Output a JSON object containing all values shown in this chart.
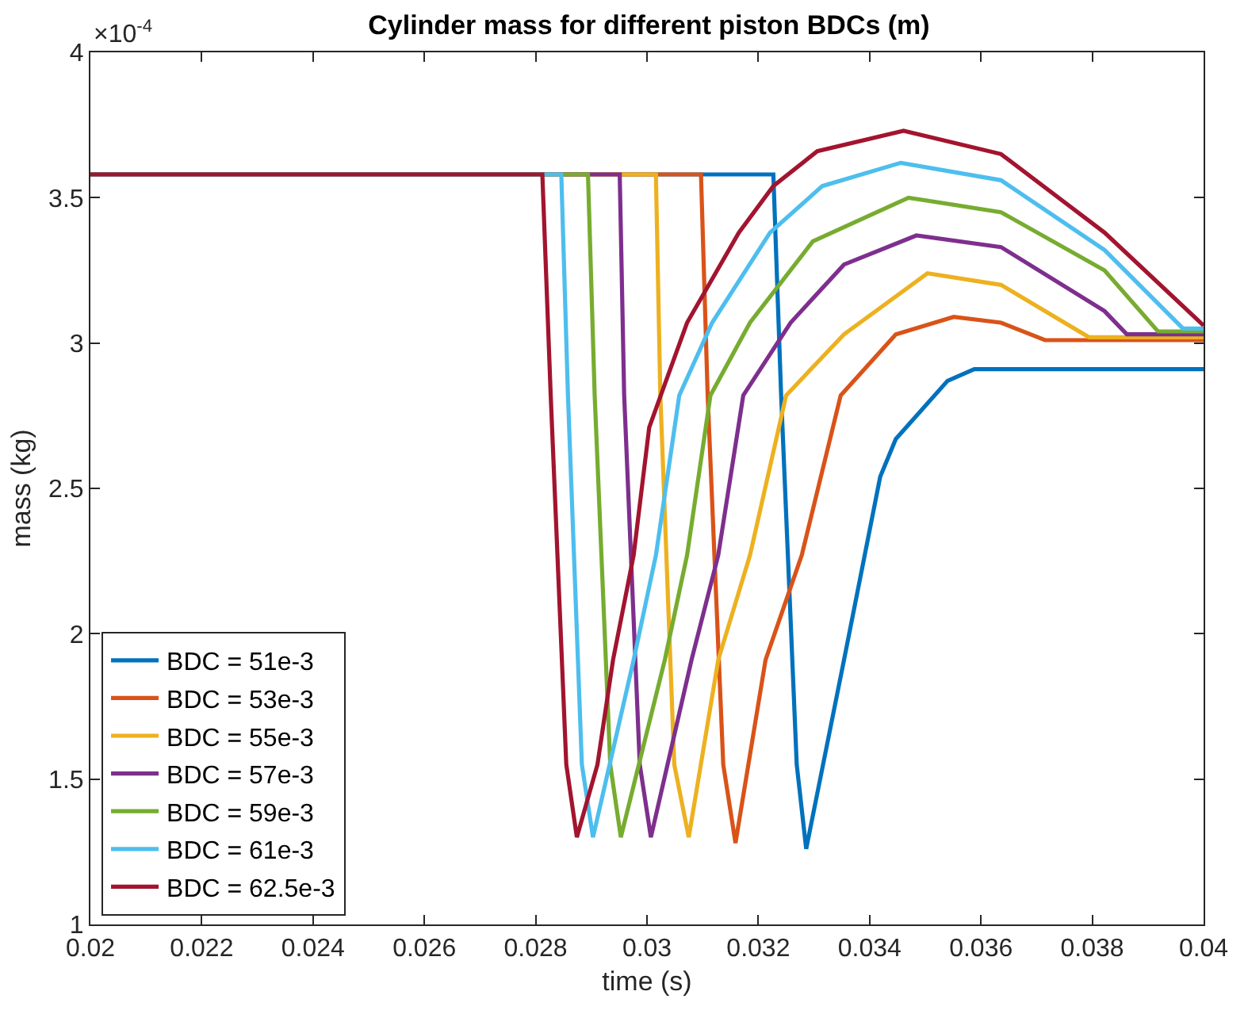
{
  "chart_data": {
    "type": "line",
    "title": "Cylinder mass for different piston BDCs (m)",
    "xlabel": "time (s)",
    "ylabel": "mass (kg)",
    "annotations": [
      "×10$^{-4}$"
    ],
    "xlim": [
      0.02,
      0.04
    ],
    "xticks": [
      0.02,
      0.022,
      0.024,
      0.026,
      0.028,
      0.03,
      0.032,
      0.034,
      0.036,
      0.038,
      0.04
    ],
    "ylim": [
      1,
      4
    ],
    "yticks": [
      1,
      1.5,
      2,
      2.5,
      3,
      3.5,
      4
    ],
    "grid": false,
    "legend": "bottom left",
    "marker": "none",
    "line_style": "solid",
    "series": [
      {
        "name": "BDC = 51e-3",
        "color": "#0072bd",
        "x": [
          0.02,
          0.03227,
          0.03241,
          0.03269,
          0.03286,
          0.03354,
          0.03419,
          0.03447,
          0.0354,
          0.03588,
          0.04
        ],
        "values": [
          3.58,
          3.58,
          2.82,
          1.55,
          1.26,
          1.91,
          2.54,
          2.67,
          2.87,
          2.91,
          2.91
        ]
      },
      {
        "name": "BDC = 53e-3",
        "color": "#d95319",
        "x": [
          0.02,
          0.03097,
          0.03109,
          0.03137,
          0.03159,
          0.03213,
          0.03278,
          0.03348,
          0.03447,
          0.03551,
          0.03636,
          0.03715,
          0.04
        ],
        "values": [
          3.58,
          3.58,
          2.82,
          1.55,
          1.28,
          1.91,
          2.27,
          2.82,
          3.03,
          3.09,
          3.07,
          3.01,
          3.01
        ]
      },
      {
        "name": "BDC = 55e-3",
        "color": "#edb120",
        "x": [
          0.02,
          0.03016,
          0.03024,
          0.03049,
          0.03075,
          0.03128,
          0.03185,
          0.0325,
          0.03354,
          0.03504,
          0.03636,
          0.03794,
          0.04
        ],
        "values": [
          3.58,
          3.58,
          2.82,
          1.55,
          1.3,
          1.91,
          2.27,
          2.82,
          3.03,
          3.24,
          3.2,
          3.02,
          3.02
        ]
      },
      {
        "name": "BDC = 57e-3",
        "color": "#7e2f8e",
        "x": [
          0.02,
          0.02951,
          0.02959,
          0.02987,
          0.03007,
          0.0308,
          0.03128,
          0.03173,
          0.03258,
          0.03354,
          0.03484,
          0.03636,
          0.03822,
          0.03862,
          0.04
        ],
        "values": [
          3.58,
          3.58,
          2.82,
          1.55,
          1.3,
          1.91,
          2.27,
          2.82,
          3.07,
          3.27,
          3.37,
          3.33,
          3.11,
          3.03,
          3.03
        ]
      },
      {
        "name": "BDC = 59e-3",
        "color": "#77ac30",
        "x": [
          0.02,
          0.02894,
          0.02906,
          0.02934,
          0.02953,
          0.03032,
          0.03072,
          0.03114,
          0.03185,
          0.03298,
          0.0347,
          0.03636,
          0.03822,
          0.03918,
          0.04
        ],
        "values": [
          3.58,
          3.58,
          2.82,
          1.55,
          1.3,
          1.91,
          2.27,
          2.82,
          3.07,
          3.35,
          3.5,
          3.45,
          3.25,
          3.04,
          3.04
        ]
      },
      {
        "name": "BDC = 61e-3",
        "color": "#4dbeee",
        "x": [
          0.02,
          0.02846,
          0.02858,
          0.02883,
          0.02903,
          0.02976,
          0.03016,
          0.03058,
          0.03117,
          0.03221,
          0.03315,
          0.03456,
          0.03636,
          0.03822,
          0.03963,
          0.04
        ],
        "values": [
          3.58,
          3.58,
          2.82,
          1.55,
          1.3,
          1.91,
          2.27,
          2.82,
          3.07,
          3.38,
          3.54,
          3.62,
          3.56,
          3.32,
          3.05,
          3.05
        ]
      },
      {
        "name": "BDC = 62.5e-3",
        "color": "#a2142f",
        "x": [
          0.02,
          0.02812,
          0.02827,
          0.02855,
          0.02874,
          0.02911,
          0.02939,
          0.02976,
          0.03004,
          0.03072,
          0.03165,
          0.03227,
          0.03306,
          0.03461,
          0.03636,
          0.03822,
          0.04
        ],
        "values": [
          3.58,
          3.58,
          2.82,
          1.55,
          1.3,
          1.55,
          1.91,
          2.27,
          2.71,
          3.07,
          3.38,
          3.54,
          3.66,
          3.73,
          3.65,
          3.38,
          3.06
        ]
      }
    ]
  }
}
